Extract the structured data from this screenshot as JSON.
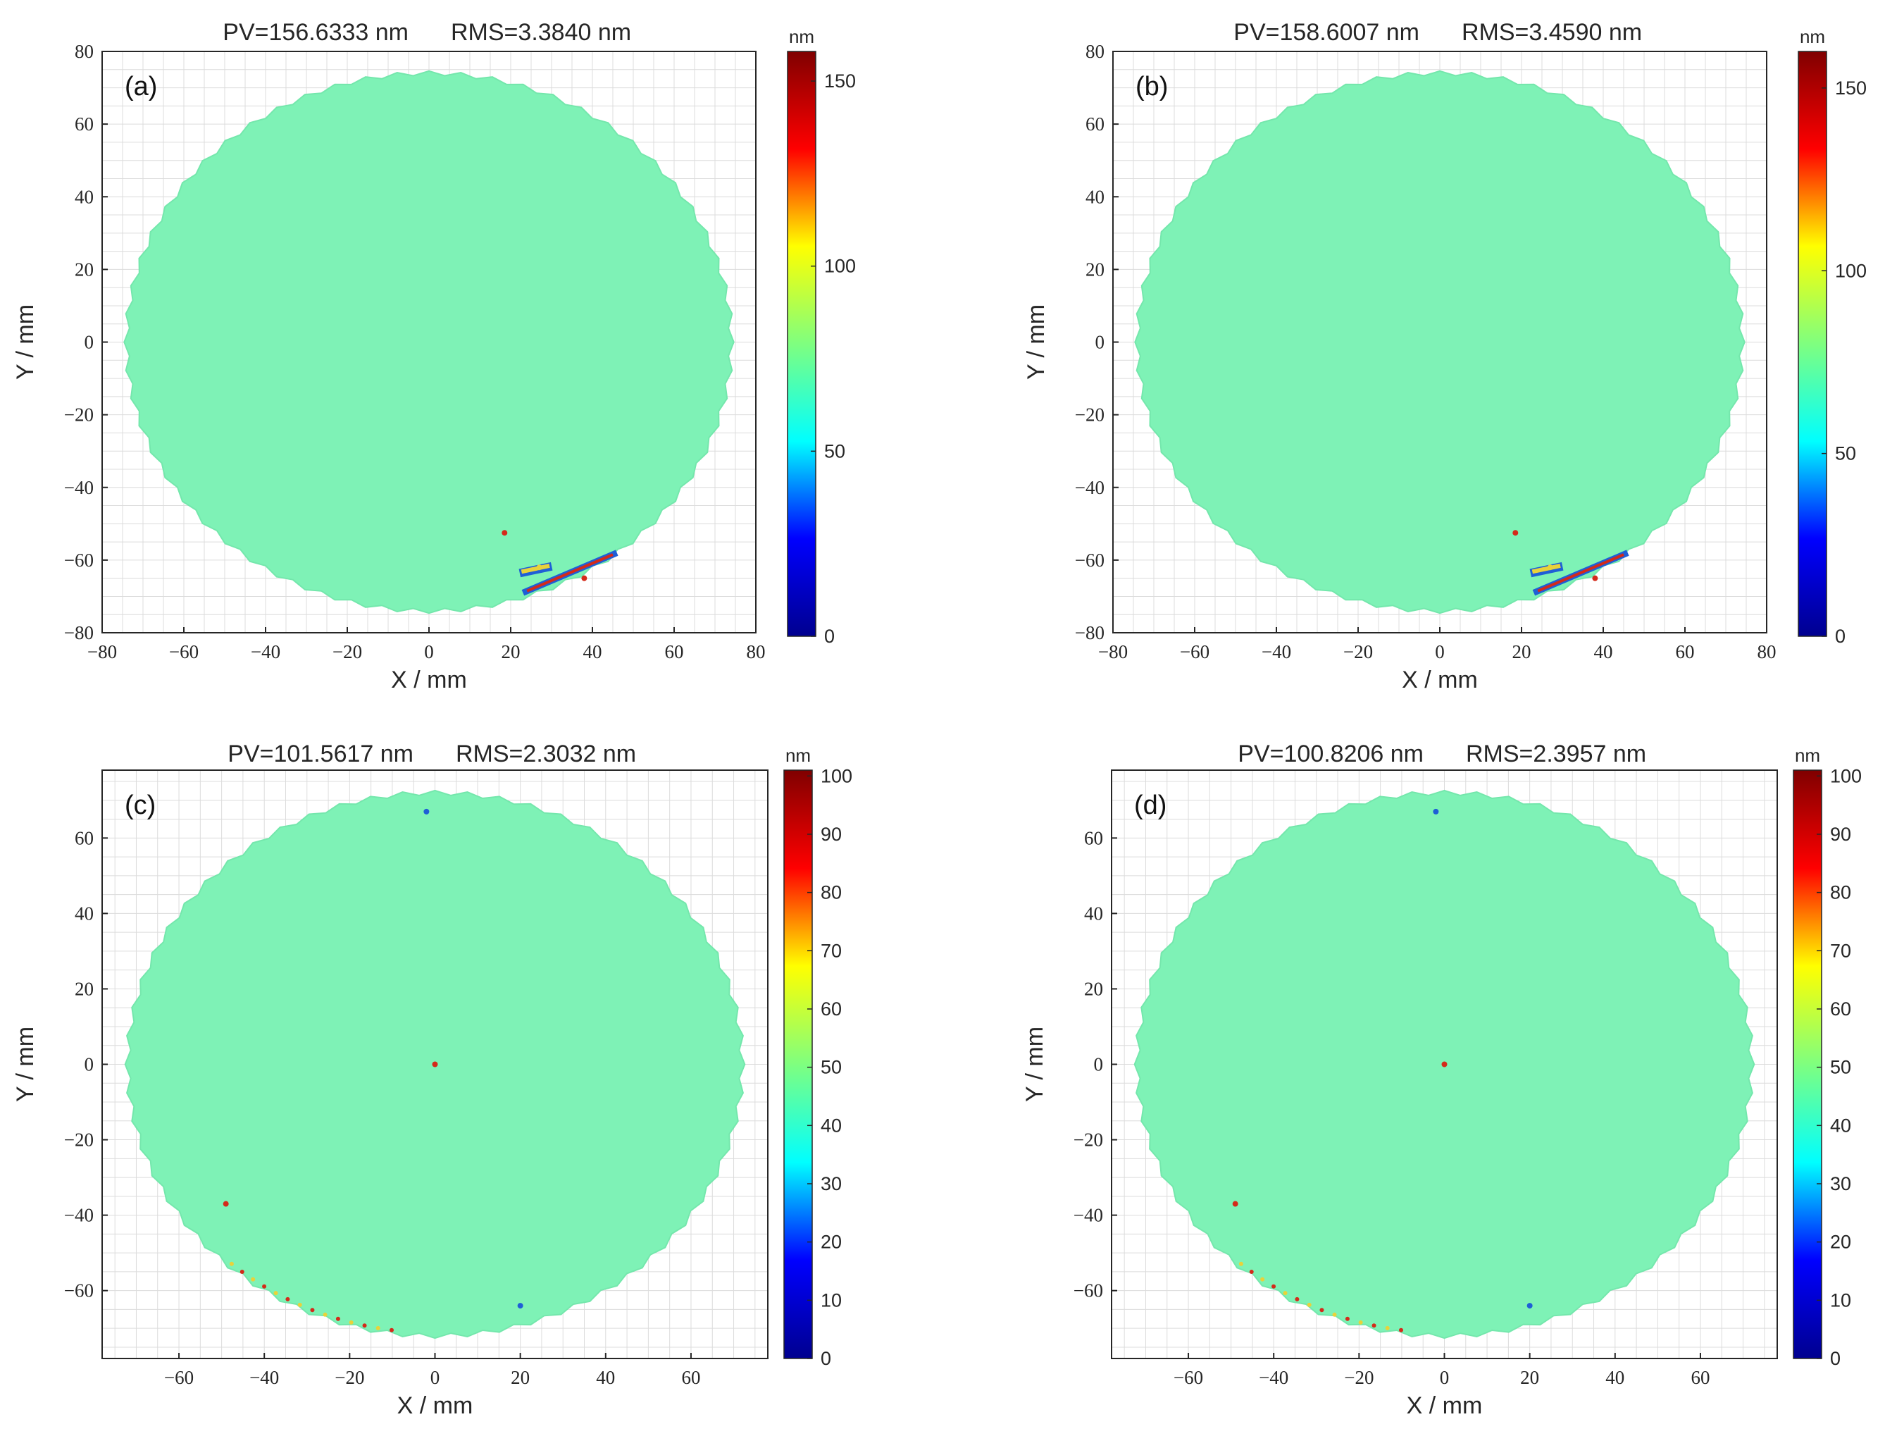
{
  "colors": {
    "surface": "#7ef2b6",
    "grid": "#dcdcdc",
    "axis": "#262626",
    "defect_red": "#d42a1a",
    "defect_yellow": "#e9d23a",
    "defect_blue": "#1f5fd6",
    "colormap": [
      "#00008f",
      "#0000ff",
      "#00ffff",
      "#7fff7f",
      "#ffff00",
      "#ff0000",
      "#800000"
    ]
  },
  "chart_data": [
    {
      "type": "heatmap",
      "panel_label": "(a)",
      "title_pv": "PV=156.6333 nm",
      "title_rms": "RMS=3.3840 nm",
      "xlabel": "X / mm",
      "ylabel": "Y / mm",
      "xlim": [
        -80,
        80
      ],
      "ylim": [
        -80,
        80
      ],
      "xticks": [
        "−80",
        "−60",
        "−40",
        "−20",
        "0",
        "20",
        "40",
        "60",
        "80"
      ],
      "yticks": [
        "80",
        "60",
        "40",
        "20",
        "0",
        "−20",
        "−40",
        "−60",
        "−80"
      ],
      "aperture_radius_mm": 74,
      "colorbar": {
        "unit": "nm",
        "range": [
          0,
          158
        ],
        "ticks": [
          "150",
          "100",
          "50",
          "0"
        ]
      },
      "defects": [
        {
          "x": 18.5,
          "y": -52.5,
          "color": "red"
        },
        {
          "x": 27,
          "y": -62,
          "color": "yellow"
        },
        {
          "x": 38,
          "y": -65,
          "color": "red"
        }
      ]
    },
    {
      "type": "heatmap",
      "panel_label": "(b)",
      "title_pv": "PV=158.6007 nm",
      "title_rms": "RMS=3.4590 nm",
      "xlabel": "X / mm",
      "ylabel": "Y / mm",
      "xlim": [
        -80,
        80
      ],
      "ylim": [
        -80,
        80
      ],
      "xticks": [
        "−80",
        "−60",
        "−40",
        "−20",
        "0",
        "20",
        "40",
        "60",
        "80"
      ],
      "yticks": [
        "80",
        "60",
        "40",
        "20",
        "0",
        "−20",
        "−40",
        "−60",
        "−80"
      ],
      "aperture_radius_mm": 74,
      "colorbar": {
        "unit": "nm",
        "range": [
          0,
          160
        ],
        "ticks": [
          "150",
          "100",
          "50",
          "0"
        ]
      },
      "defects": [
        {
          "x": 18.5,
          "y": -52.5,
          "color": "red"
        },
        {
          "x": 27,
          "y": -62,
          "color": "yellow"
        },
        {
          "x": 38,
          "y": -65,
          "color": "red"
        }
      ]
    },
    {
      "type": "heatmap",
      "panel_label": "(c)",
      "title_pv": "PV=101.5617 nm",
      "title_rms": "RMS=2.3032 nm",
      "xlabel": "X / mm",
      "ylabel": "Y / mm",
      "xlim": [
        -78,
        78
      ],
      "ylim": [
        -78,
        78
      ],
      "xticks": [
        "−60",
        "−40",
        "−20",
        "0",
        "20",
        "40",
        "60"
      ],
      "yticks": [
        "60",
        "40",
        "20",
        "0",
        "−20",
        "−40",
        "−60"
      ],
      "aperture_radius_mm": 72,
      "colorbar": {
        "unit": "nm",
        "range": [
          0,
          101
        ],
        "ticks": [
          "100",
          "90",
          "80",
          "70",
          "60",
          "50",
          "40",
          "30",
          "20",
          "10",
          "0"
        ]
      },
      "defects": [
        {
          "x": 0,
          "y": 0,
          "color": "red"
        },
        {
          "x": -49,
          "y": -37,
          "color": "red"
        },
        {
          "x": 20,
          "y": -64,
          "color": "blue"
        },
        {
          "x": -2,
          "y": 67,
          "color": "blue"
        }
      ]
    },
    {
      "type": "heatmap",
      "panel_label": "(d)",
      "title_pv": "PV=100.8206 nm",
      "title_rms": "RMS=2.3957 nm",
      "xlabel": "X / mm",
      "ylabel": "Y / mm",
      "xlim": [
        -78,
        78
      ],
      "ylim": [
        -78,
        78
      ],
      "xticks": [
        "−60",
        "−40",
        "−20",
        "0",
        "20",
        "40",
        "60"
      ],
      "yticks": [
        "60",
        "40",
        "20",
        "0",
        "−20",
        "−40",
        "−60"
      ],
      "aperture_radius_mm": 72,
      "colorbar": {
        "unit": "nm",
        "range": [
          0,
          101
        ],
        "ticks": [
          "100",
          "90",
          "80",
          "70",
          "60",
          "50",
          "40",
          "30",
          "20",
          "10",
          "0"
        ]
      },
      "defects": [
        {
          "x": 0,
          "y": 0,
          "color": "red"
        },
        {
          "x": -49,
          "y": -37,
          "color": "red"
        },
        {
          "x": 20,
          "y": -64,
          "color": "blue"
        },
        {
          "x": -2,
          "y": 67,
          "color": "blue"
        }
      ]
    }
  ]
}
